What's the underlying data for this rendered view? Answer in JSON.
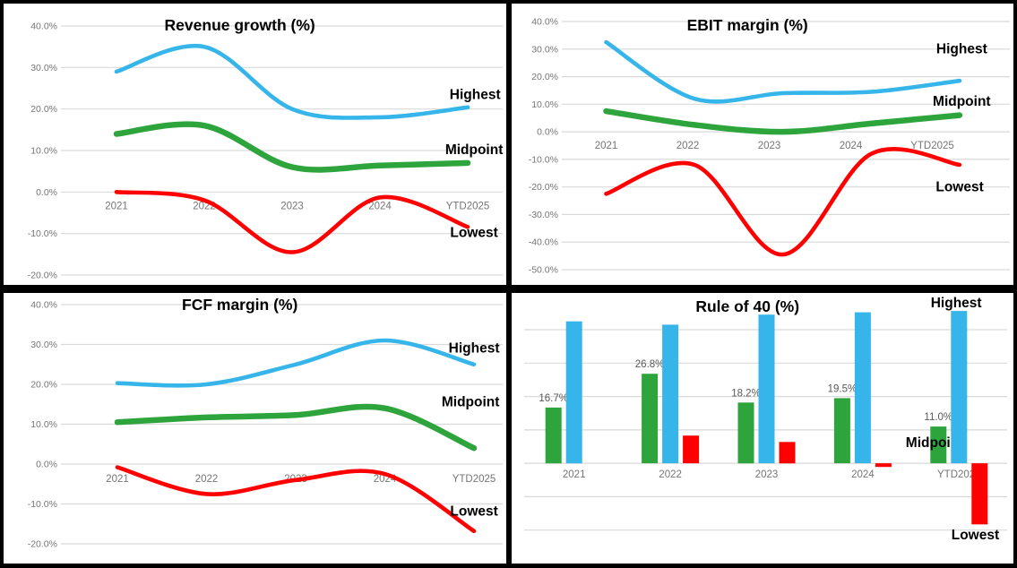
{
  "frame": {
    "border_color": "#000000",
    "panel_bg": "#FFFFFF"
  },
  "styles": {
    "grid_color": "#D9D9D9",
    "tick_color": "#757575",
    "bar_label_color": "#595959",
    "annotation_color": "#000000",
    "highest_color": "#35B5E9",
    "midpoint_color": "#2EA43C",
    "lowest_color": "#FF0000"
  },
  "chart_data": [
    {
      "id": "revenue-growth",
      "type": "line",
      "title": "Revenue growth (%)",
      "categories": [
        "2021",
        "2022",
        "2023",
        "2024",
        "YTD2025"
      ],
      "ylim": [
        -20,
        40
      ],
      "ytick_step": 10,
      "ytick_format": "percent1",
      "show_yticks": true,
      "grid": true,
      "legend_position": "right-inline",
      "series": [
        {
          "name": "Highest",
          "color": "#35B5E9",
          "values": [
            29,
            35,
            20,
            18,
            20.4
          ],
          "label": {
            "text": "Highest",
            "fx": 0.938,
            "fy": 0.322
          }
        },
        {
          "name": "Midpoint",
          "color": "#2EA43C",
          "values": [
            14,
            16,
            6,
            6.4,
            7
          ],
          "label": {
            "text": "Midpoint",
            "fx": 0.936,
            "fy": 0.518
          }
        },
        {
          "name": "Lowest",
          "color": "#FF0000",
          "values": [
            0,
            -2,
            -14.5,
            -1.3,
            -8.4
          ],
          "label": {
            "text": "Lowest",
            "fx": 0.936,
            "fy": 0.812
          }
        }
      ]
    },
    {
      "id": "ebit-margin",
      "type": "line",
      "title": "EBIT margin (%)",
      "categories": [
        "2021",
        "2022",
        "2023",
        "2024",
        "YTD2025"
      ],
      "ylim": [
        -50,
        40
      ],
      "ytick_step": 10,
      "ytick_format": "percent1",
      "show_yticks": true,
      "grid": true,
      "legend_position": "right-inline",
      "series": [
        {
          "name": "Highest",
          "color": "#35B5E9",
          "values": [
            32.5,
            12,
            14,
            14.5,
            18.5
          ],
          "label": {
            "text": "Highest",
            "fx": 0.897,
            "fy": 0.159
          }
        },
        {
          "name": "Midpoint",
          "color": "#2EA43C",
          "values": [
            7.5,
            2.5,
            0,
            3,
            6
          ],
          "label": {
            "text": "Midpoint",
            "fx": 0.897,
            "fy": 0.346
          }
        },
        {
          "name": "Lowest",
          "color": "#FF0000",
          "values": [
            -22.5,
            -12,
            -44.5,
            -8,
            -12
          ],
          "label": {
            "text": "Lowest",
            "fx": 0.893,
            "fy": 0.65
          }
        }
      ]
    },
    {
      "id": "fcf-margin",
      "type": "line",
      "title": "FCF margin (%)",
      "categories": [
        "2021",
        "2022",
        "2023",
        "2024",
        "YTD2025"
      ],
      "ylim": [
        -20,
        40
      ],
      "ytick_step": 10,
      "ytick_format": "percent1",
      "show_yticks": true,
      "grid": true,
      "legend_position": "right-inline",
      "series": [
        {
          "name": "Highest",
          "color": "#35B5E9",
          "values": [
            20.3,
            20,
            25,
            31,
            25
          ],
          "label": {
            "text": "Highest",
            "fx": 0.936,
            "fy": 0.202
          }
        },
        {
          "name": "Midpoint",
          "color": "#2EA43C",
          "values": [
            10.5,
            11.7,
            12.3,
            14,
            4
          ],
          "label": {
            "text": "Midpoint",
            "fx": 0.929,
            "fy": 0.4
          }
        },
        {
          "name": "Lowest",
          "color": "#FF0000",
          "values": [
            -0.8,
            -7.5,
            -4,
            -2.5,
            -16.8
          ],
          "label": {
            "text": "Lowest",
            "fx": 0.936,
            "fy": 0.805
          }
        }
      ]
    },
    {
      "id": "rule-of-40",
      "type": "bar",
      "title": "Rule of 40 (%)",
      "categories": [
        "2021",
        "2022",
        "2023",
        "2024",
        "YTD2025"
      ],
      "ylim": [
        -30,
        51
      ],
      "ytick_step": 10,
      "ytick_range": [
        -20,
        40
      ],
      "show_yticks": false,
      "grid": true,
      "legend_position": "right-inline",
      "series": [
        {
          "name": "Midpoint",
          "color": "#2EA43C",
          "bar_offset": -23,
          "values": [
            16.7,
            26.8,
            18.2,
            19.5,
            11.0
          ],
          "value_labels": [
            "16.7%",
            "26.8%",
            "18.2%",
            "19.5%",
            "11.0%"
          ],
          "label": {
            "text": "Midpoint",
            "fx": 0.843,
            "fy": 0.551
          }
        },
        {
          "name": "Highest",
          "color": "#35B5E9",
          "bar_offset": 0,
          "values": [
            42.5,
            41.5,
            44.5,
            45.2,
            45.6
          ],
          "label": {
            "text": "Highest",
            "fx": 0.886,
            "fy": 0.035
          }
        },
        {
          "name": "Lowest",
          "color": "#FF0000",
          "bar_offset": 23,
          "values": [
            0,
            8.3,
            6.4,
            -1.1,
            -18.3
          ],
          "label": {
            "text": "Lowest",
            "fx": 0.924,
            "fy": 0.893
          }
        }
      ]
    }
  ]
}
